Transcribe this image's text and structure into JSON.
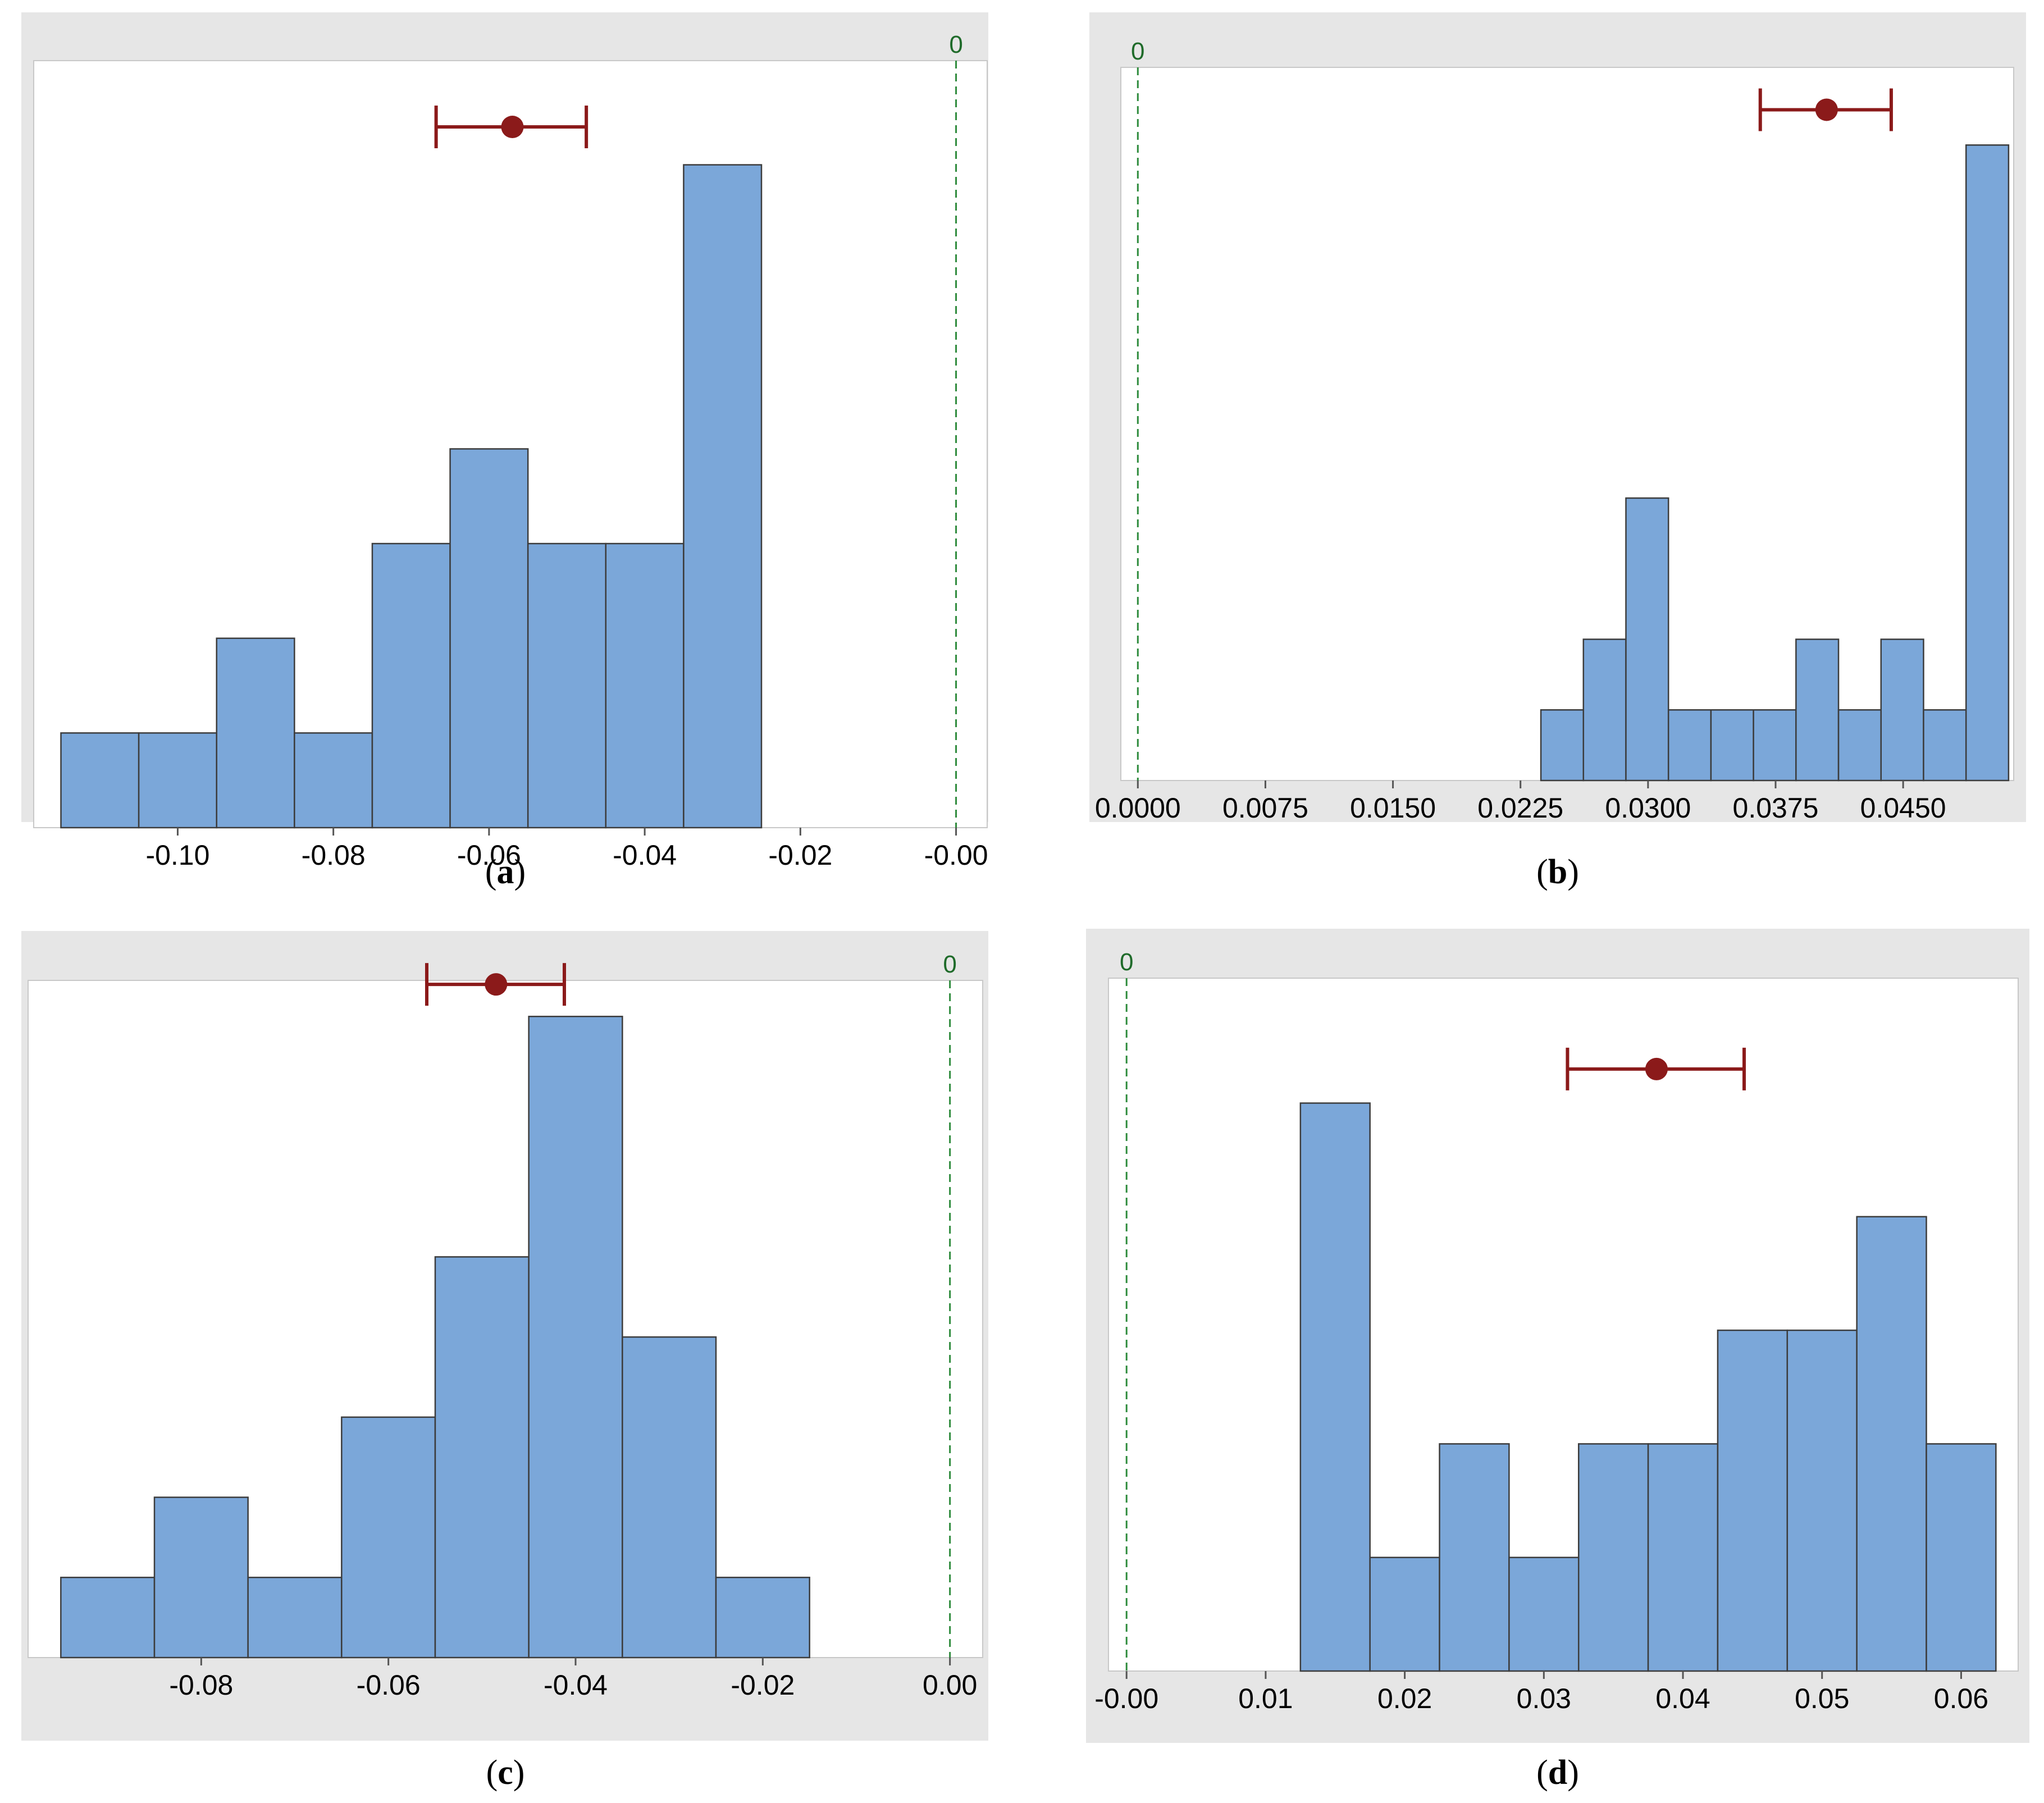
{
  "chart_data": [
    {
      "type": "bar",
      "panel": "a",
      "caption_letter": "a",
      "bin_edges": [
        -0.115,
        -0.105,
        -0.095,
        -0.085,
        -0.075,
        -0.065,
        -0.055,
        -0.045,
        -0.035,
        -0.025
      ],
      "values": [
        1,
        1,
        2,
        1,
        3,
        4,
        3,
        3,
        7
      ],
      "xlim": [
        -0.1185,
        0.004
      ],
      "ylim": [
        0,
        8.1
      ],
      "xticks": [
        -0.1,
        -0.08,
        -0.06,
        -0.04,
        -0.02,
        -0.0
      ],
      "xtick_labels": [
        "-0.10",
        "-0.08",
        "-0.06",
        "-0.04",
        "-0.02",
        "-0.00"
      ],
      "reference_line": {
        "x": 0,
        "label": "0"
      },
      "interval": {
        "mean": -0.057,
        "lower": -0.0668,
        "upper": -0.0475,
        "y": 7.4
      }
    },
    {
      "type": "bar",
      "panel": "b",
      "caption_letter": "b",
      "bin_edges": [
        0.0237,
        0.0262,
        0.0287,
        0.0312,
        0.0337,
        0.0362,
        0.0387,
        0.0412,
        0.0437,
        0.0462,
        0.0487,
        0.0512
      ],
      "values": [
        1,
        2,
        4,
        1,
        1,
        1,
        2,
        1,
        2,
        1,
        9
      ],
      "xlim": [
        -0.001,
        0.0515
      ],
      "ylim": [
        0,
        10.1
      ],
      "xticks": [
        0.0,
        0.0075,
        0.015,
        0.0225,
        0.03,
        0.0375,
        0.045
      ],
      "xtick_labels": [
        "0.0000",
        "0.0075",
        "0.0150",
        "0.0225",
        "0.0300",
        "0.0375",
        "0.0450"
      ],
      "reference_line": {
        "x": 0,
        "label": "0"
      },
      "interval": {
        "mean": 0.0405,
        "lower": 0.0366,
        "upper": 0.0443,
        "y": 9.5
      }
    },
    {
      "type": "bar",
      "panel": "c",
      "caption_letter": "c",
      "bin_edges": [
        -0.095,
        -0.085,
        -0.075,
        -0.065,
        -0.055,
        -0.045,
        -0.035,
        -0.025,
        -0.015
      ],
      "values": [
        1,
        2,
        1,
        3,
        5,
        8,
        4,
        1
      ],
      "xlim": [
        -0.0985,
        0.0035
      ],
      "ylim": [
        0,
        8.45
      ],
      "xticks": [
        -0.08,
        -0.06,
        -0.04,
        -0.02,
        0.0
      ],
      "xtick_labels": [
        "-0.08",
        "-0.06",
        "-0.04",
        "-0.02",
        "0.00"
      ],
      "reference_line": {
        "x": 0,
        "label": "0"
      },
      "interval": {
        "mean": -0.0485,
        "lower": -0.0559,
        "upper": -0.0412,
        "y": 8.4
      }
    },
    {
      "type": "bar",
      "panel": "d",
      "caption_letter": "d",
      "bin_edges": [
        0.0125,
        0.0175,
        0.0225,
        0.0275,
        0.0325,
        0.0375,
        0.0425,
        0.0475,
        0.0525,
        0.0575,
        0.0625
      ],
      "values": [
        5,
        1,
        2,
        1,
        2,
        2,
        3,
        3,
        4,
        2
      ],
      "xlim": [
        -0.0013,
        0.0641
      ],
      "ylim": [
        0,
        6.1
      ],
      "xticks": [
        0.0,
        0.01,
        0.02,
        0.03,
        0.04,
        0.05,
        0.06
      ],
      "xtick_labels": [
        "-0.00",
        "0.01",
        "0.02",
        "0.03",
        "0.04",
        "0.05",
        "0.06"
      ],
      "reference_line": {
        "x": 0,
        "label": "0"
      },
      "interval": {
        "mean": 0.0381,
        "lower": 0.0317,
        "upper": 0.0444,
        "y": 5.3
      }
    }
  ],
  "colors": {
    "frame": "#e6e6e6",
    "bar_fill": "#7ba7d9",
    "bar_stroke": "#3c3c3c",
    "interval": "#8b1a1a",
    "reference_line": "#2e8b3c",
    "reference_label": "#1f6b2a"
  }
}
